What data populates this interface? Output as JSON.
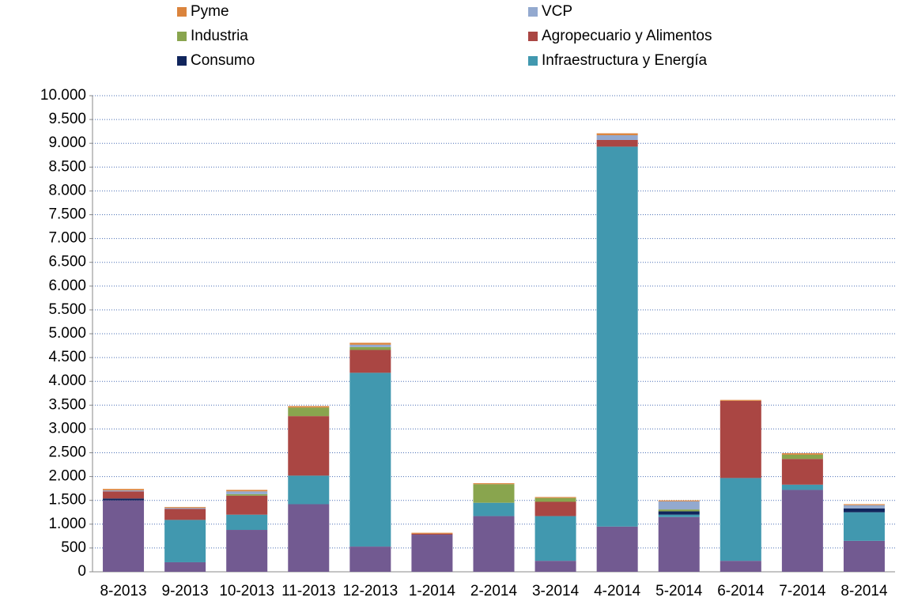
{
  "chart_data": {
    "type": "stacked_bar",
    "categories": [
      "8-2013",
      "9-2013",
      "10-2013",
      "11-2013",
      "12-2013",
      "1-2014",
      "2-2014",
      "3-2014",
      "4-2014",
      "5-2014",
      "6-2014",
      "7-2014",
      "8-2014"
    ],
    "series": [
      {
        "name": null,
        "color": "#725a91",
        "values": [
          1500,
          200,
          880,
          1420,
          530,
          780,
          1170,
          230,
          950,
          1150,
          230,
          1720,
          650
        ]
      },
      {
        "name": "Infraestructura y Energía",
        "color": "#4198af",
        "values": [
          0,
          890,
          320,
          600,
          3650,
          0,
          280,
          940,
          7980,
          50,
          1740,
          110,
          600
        ]
      },
      {
        "name": "Consumo",
        "color": "#10255c",
        "values": [
          40,
          0,
          0,
          0,
          0,
          0,
          0,
          0,
          0,
          70,
          0,
          0,
          80
        ]
      },
      {
        "name": "Agropecuario y Alimentos",
        "color": "#aa4643",
        "values": [
          150,
          230,
          400,
          1250,
          480,
          20,
          0,
          300,
          140,
          0,
          1620,
          540,
          0
        ]
      },
      {
        "name": "Industria",
        "color": "#89a54e",
        "values": [
          0,
          0,
          30,
          180,
          60,
          0,
          390,
          80,
          0,
          40,
          0,
          90,
          0
        ]
      },
      {
        "name": "VCP",
        "color": "#93a9cf",
        "values": [
          20,
          20,
          60,
          0,
          50,
          0,
          0,
          0,
          100,
          170,
          0,
          0,
          70
        ]
      },
      {
        "name": "Pyme",
        "color": "#db843d",
        "values": [
          30,
          20,
          30,
          30,
          40,
          20,
          20,
          20,
          40,
          20,
          20,
          30,
          20
        ]
      }
    ],
    "ylim": [
      0,
      10000
    ],
    "yticks": [
      0,
      500,
      {
        "value": 1000,
        "label": "1.000"
      },
      {
        "value": 1500,
        "label": "1.500"
      },
      {
        "value": 2000,
        "label": "2.000"
      },
      {
        "value": 2500,
        "label": "2.500"
      },
      {
        "value": 3000,
        "label": "3.000"
      },
      {
        "value": 3500,
        "label": "3.500"
      },
      {
        "value": 4000,
        "label": "4.000"
      },
      {
        "value": 4500,
        "label": "4.500"
      },
      {
        "value": 5000,
        "label": "5.000"
      },
      {
        "value": 5500,
        "label": "5.500"
      },
      {
        "value": 6000,
        "label": "6.000"
      },
      {
        "value": 6500,
        "label": "6.500"
      },
      {
        "value": 7000,
        "label": "7.000"
      },
      {
        "value": 7500,
        "label": "7.500"
      },
      {
        "value": 8000,
        "label": "8.000"
      },
      {
        "value": 8500,
        "label": "8.500"
      },
      {
        "value": 9000,
        "label": "9.000"
      },
      {
        "value": 9500,
        "label": "9.500"
      },
      {
        "value": 10000,
        "label": "10.000"
      }
    ],
    "grid": true
  }
}
